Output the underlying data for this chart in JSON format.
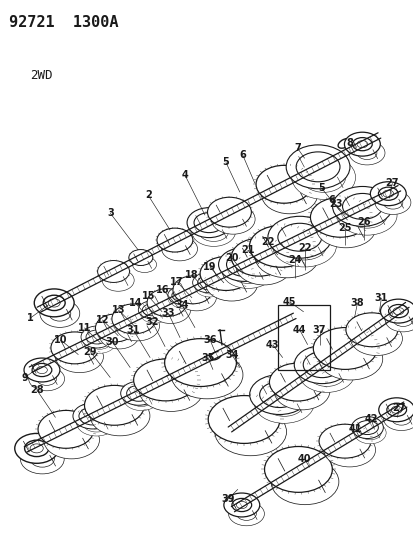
{
  "title": "92721  1300A",
  "subtitle": "2WD",
  "bg_color": "#ffffff",
  "lc": "#1a1a1a",
  "fig_w": 4.14,
  "fig_h": 5.33,
  "dpi": 100,
  "title_fs": 11,
  "sub_fs": 9,
  "label_fs": 7
}
